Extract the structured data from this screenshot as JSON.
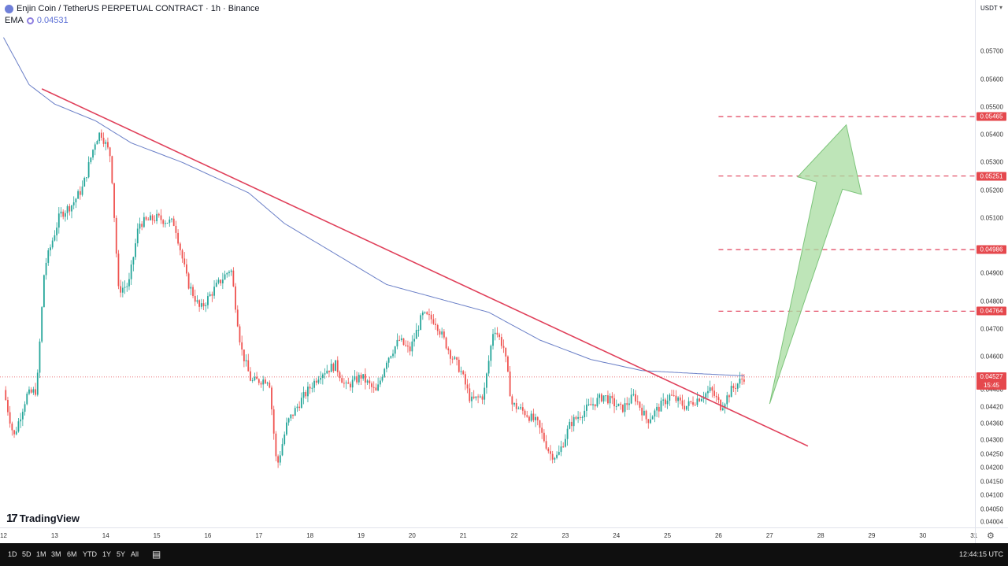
{
  "legend": {
    "title": "Enjin Coin / TetherUS PERPETUAL CONTRACT · 1h · Binance",
    "ema_label": "EMA",
    "ema_value": "0.04531"
  },
  "branding": {
    "logo_text": "TradingView"
  },
  "price_scale": {
    "currency": "USDT",
    "ticks": [
      "0.05700",
      "0.05600",
      "0.05500",
      "0.05400",
      "0.05300",
      "0.05200",
      "0.05100",
      "0.04900",
      "0.04800",
      "0.04700",
      "0.04600",
      "0.04480",
      "0.04420",
      "0.04360",
      "0.04300",
      "0.04250",
      "0.04200",
      "0.04150",
      "0.04100",
      "0.04050",
      "0.04004"
    ],
    "level_labels": [
      "0.05465",
      "0.05251",
      "0.04986",
      "0.04764"
    ],
    "current_price": "0.04527",
    "countdown": "15:45"
  },
  "time_axis": {
    "ticks": [
      "12",
      "13",
      "14",
      "15",
      "16",
      "17",
      "18",
      "19",
      "20",
      "21",
      "22",
      "23",
      "24",
      "25",
      "26",
      "27",
      "28",
      "29",
      "30",
      "31"
    ]
  },
  "toolbar": {
    "ranges": [
      "1D",
      "5D",
      "1M",
      "3M",
      "6M",
      "YTD",
      "1Y",
      "5Y",
      "All"
    ],
    "clock": "12:44:15 UTC"
  },
  "colors": {
    "up": "#26a69a",
    "down": "#ef5350",
    "trendline": "#e0405a",
    "ema": "#6a7fc7",
    "level": "#e0405a",
    "arrow_fill": "#a8dca0",
    "arrow_stroke": "#7cc47a"
  },
  "chart_data": {
    "type": "candlestick",
    "timeframe": "1h",
    "y_axis_label": "USDT",
    "current_price": 0.04527,
    "ema": {
      "label": "EMA",
      "value": 0.04531
    },
    "price_anchors": [
      {
        "d": 12.0,
        "p": 0.0448
      },
      {
        "d": 12.2,
        "p": 0.0431
      },
      {
        "d": 12.45,
        "p": 0.0446
      },
      {
        "d": 12.65,
        "p": 0.0448
      },
      {
        "d": 12.8,
        "p": 0.0492
      },
      {
        "d": 13.1,
        "p": 0.0511
      },
      {
        "d": 13.35,
        "p": 0.0515
      },
      {
        "d": 13.55,
        "p": 0.0521
      },
      {
        "d": 13.8,
        "p": 0.0538
      },
      {
        "d": 13.9,
        "p": 0.0541
      },
      {
        "d": 14.1,
        "p": 0.0532
      },
      {
        "d": 14.25,
        "p": 0.0484
      },
      {
        "d": 14.45,
        "p": 0.0486
      },
      {
        "d": 14.65,
        "p": 0.0508
      },
      {
        "d": 15.0,
        "p": 0.051
      },
      {
        "d": 15.35,
        "p": 0.0508
      },
      {
        "d": 15.6,
        "p": 0.0487
      },
      {
        "d": 15.85,
        "p": 0.0477
      },
      {
        "d": 16.15,
        "p": 0.0485
      },
      {
        "d": 16.45,
        "p": 0.0492
      },
      {
        "d": 16.65,
        "p": 0.0463
      },
      {
        "d": 16.85,
        "p": 0.0451
      },
      {
        "d": 17.2,
        "p": 0.0452
      },
      {
        "d": 17.35,
        "p": 0.042
      },
      {
        "d": 17.55,
        "p": 0.0436
      },
      {
        "d": 17.85,
        "p": 0.0445
      },
      {
        "d": 18.2,
        "p": 0.0454
      },
      {
        "d": 18.5,
        "p": 0.0457
      },
      {
        "d": 18.7,
        "p": 0.0449
      },
      {
        "d": 19.0,
        "p": 0.0453
      },
      {
        "d": 19.3,
        "p": 0.0447
      },
      {
        "d": 19.5,
        "p": 0.0459
      },
      {
        "d": 19.75,
        "p": 0.0466
      },
      {
        "d": 19.95,
        "p": 0.0462
      },
      {
        "d": 20.2,
        "p": 0.0475
      },
      {
        "d": 20.45,
        "p": 0.0473
      },
      {
        "d": 20.75,
        "p": 0.0461
      },
      {
        "d": 20.95,
        "p": 0.0455
      },
      {
        "d": 21.15,
        "p": 0.0444
      },
      {
        "d": 21.4,
        "p": 0.0446
      },
      {
        "d": 21.6,
        "p": 0.0471
      },
      {
        "d": 21.8,
        "p": 0.0463
      },
      {
        "d": 21.95,
        "p": 0.0443
      },
      {
        "d": 22.2,
        "p": 0.044
      },
      {
        "d": 22.45,
        "p": 0.0436
      },
      {
        "d": 22.7,
        "p": 0.0425
      },
      {
        "d": 22.85,
        "p": 0.0424
      },
      {
        "d": 23.1,
        "p": 0.0436
      },
      {
        "d": 23.4,
        "p": 0.0441
      },
      {
        "d": 23.75,
        "p": 0.0446
      },
      {
        "d": 24.1,
        "p": 0.0441
      },
      {
        "d": 24.35,
        "p": 0.0446
      },
      {
        "d": 24.6,
        "p": 0.0437
      },
      {
        "d": 24.85,
        "p": 0.0442
      },
      {
        "d": 25.05,
        "p": 0.0446
      },
      {
        "d": 25.35,
        "p": 0.0442
      },
      {
        "d": 25.6,
        "p": 0.0445
      },
      {
        "d": 25.85,
        "p": 0.0448
      },
      {
        "d": 26.05,
        "p": 0.0442
      },
      {
        "d": 26.25,
        "p": 0.0448
      },
      {
        "d": 26.5,
        "p": 0.04527
      }
    ],
    "ema_anchors": [
      {
        "d": 12.0,
        "p": 0.0575
      },
      {
        "d": 12.5,
        "p": 0.0558
      },
      {
        "d": 13.0,
        "p": 0.0551
      },
      {
        "d": 13.8,
        "p": 0.0545
      },
      {
        "d": 14.5,
        "p": 0.0537
      },
      {
        "d": 15.5,
        "p": 0.053
      },
      {
        "d": 16.8,
        "p": 0.0519
      },
      {
        "d": 17.5,
        "p": 0.0508
      },
      {
        "d": 18.5,
        "p": 0.0497
      },
      {
        "d": 19.5,
        "p": 0.0486
      },
      {
        "d": 20.5,
        "p": 0.0481
      },
      {
        "d": 21.5,
        "p": 0.0476
      },
      {
        "d": 22.5,
        "p": 0.0466
      },
      {
        "d": 23.5,
        "p": 0.0459
      },
      {
        "d": 24.5,
        "p": 0.0455
      },
      {
        "d": 25.5,
        "p": 0.0454
      },
      {
        "d": 26.5,
        "p": 0.04531
      }
    ],
    "trendline": {
      "from": {
        "d": 12.75,
        "p": 0.05565
      },
      "to": {
        "d": 27.75,
        "p": 0.04278
      }
    },
    "horizontal_levels": [
      0.05465,
      0.05251,
      0.04986,
      0.04764
    ],
    "levels_start_day": 26.0,
    "arrow": {
      "tail": {
        "d": 27.0,
        "p": 0.0443
      },
      "head": {
        "d": 28.5,
        "p": 0.05435
      },
      "direction": "up"
    },
    "x_range": [
      11.93,
      31.02
    ],
    "y_range": [
      0.03985,
      0.05885
    ],
    "grid": false
  }
}
